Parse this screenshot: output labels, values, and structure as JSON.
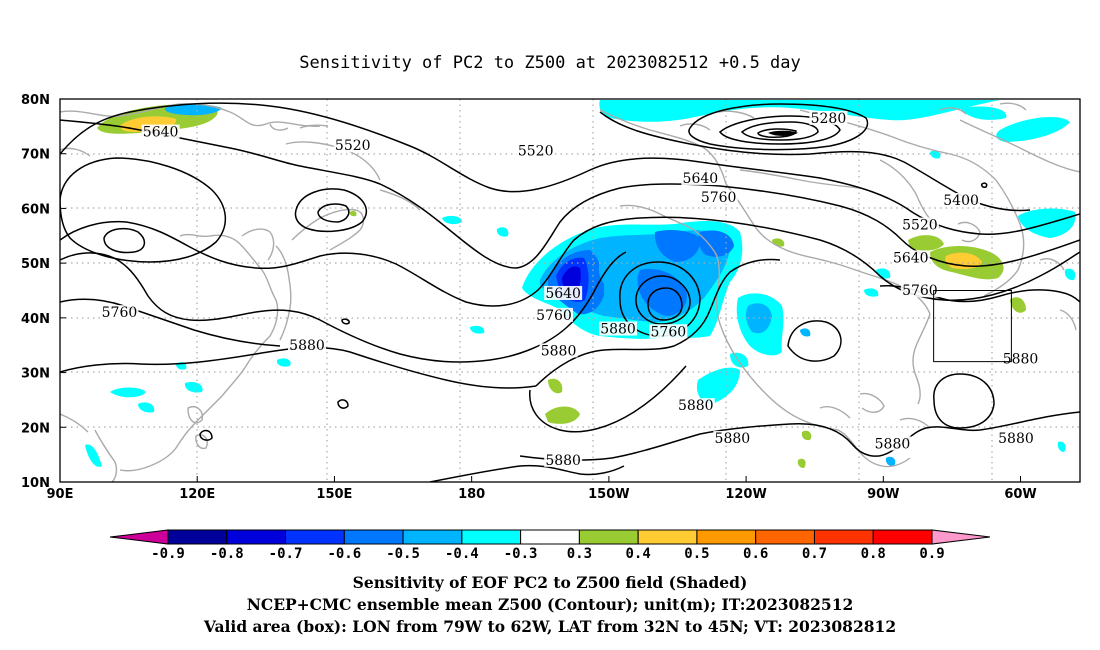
{
  "title": "Sensitivity of PC2 to Z500 at 2023082512 +0.5 day",
  "lat_ticks": [
    "80N",
    "70N",
    "60N",
    "50N",
    "40N",
    "30N",
    "20N",
    "10N"
  ],
  "lon_ticks": [
    "90E",
    "120E",
    "150E",
    "180",
    "150W",
    "120W",
    "90W",
    "60W"
  ],
  "contour_labels": [
    {
      "text": "5280",
      "lon": -102,
      "lat": 76
    },
    {
      "text": "5640",
      "lon": 112,
      "lat": 73.5
    },
    {
      "text": "5520",
      "lon": 154,
      "lat": 71
    },
    {
      "text": "5520",
      "lon": -166,
      "lat": 70
    },
    {
      "text": "5640",
      "lon": -130,
      "lat": 65
    },
    {
      "text": "5760",
      "lon": -126,
      "lat": 61.5
    },
    {
      "text": "5400",
      "lon": -73,
      "lat": 61
    },
    {
      "text": "5520",
      "lon": -82,
      "lat": 56.5
    },
    {
      "text": "5640",
      "lon": -84,
      "lat": 50.5
    },
    {
      "text": "5760",
      "lon": -82,
      "lat": 44.5
    },
    {
      "text": "5640",
      "lon": -160,
      "lat": 44
    },
    {
      "text": "5760",
      "lon": -162,
      "lat": 40
    },
    {
      "text": "5760",
      "lon": -137,
      "lat": 37
    },
    {
      "text": "5760",
      "lon": 103,
      "lat": 40.5
    },
    {
      "text": "5880",
      "lon": 144,
      "lat": 34.5
    },
    {
      "text": "5880",
      "lon": -161,
      "lat": 33.5
    },
    {
      "text": "5880",
      "lon": -148,
      "lat": 37.5
    },
    {
      "text": "5880",
      "lon": -131,
      "lat": 23.5
    },
    {
      "text": "5880",
      "lon": -123,
      "lat": 17.5
    },
    {
      "text": "5880",
      "lon": -160,
      "lat": 13.5
    },
    {
      "text": "5880",
      "lon": -88,
      "lat": 16.5
    },
    {
      "text": "5880",
      "lon": -61,
      "lat": 17.5
    },
    {
      "text": "5880",
      "lon": -60,
      "lat": 32
    }
  ],
  "valid_box": {
    "lon_min": -79,
    "lon_max": -62,
    "lat_min": 32,
    "lat_max": 45
  },
  "colorbar": {
    "labels": [
      "-0.9",
      "-0.8",
      "-0.7",
      "-0.6",
      "-0.5",
      "-0.4",
      "-0.3",
      "0.3",
      "0.4",
      "0.5",
      "0.6",
      "0.7",
      "0.8",
      "0.9"
    ],
    "colors": [
      "#00009a",
      "#0000dd",
      "#0033ff",
      "#0077ff",
      "#00b4ff",
      "#00ffff",
      "#ffffff",
      "#99cc33",
      "#ffcc33",
      "#ff9900",
      "#ff6600",
      "#ff3300",
      "#ff0000"
    ],
    "low_color": "#cc0099",
    "high_color": "#ff99cc"
  },
  "footer": [
    "Sensitivity of EOF PC2 to Z500 field (Shaded)",
    "NCEP+CMC ensemble mean Z500 (Contour); unit(m); IT:2023082512",
    "Valid area (box): LON from 79W to 62W, LAT from 32N to 45N; VT: 2023082812"
  ],
  "colors": {
    "contour": "#000000",
    "coastline": "#aaaaaa",
    "grid": "#aaaaaa",
    "frame": "#000000"
  }
}
